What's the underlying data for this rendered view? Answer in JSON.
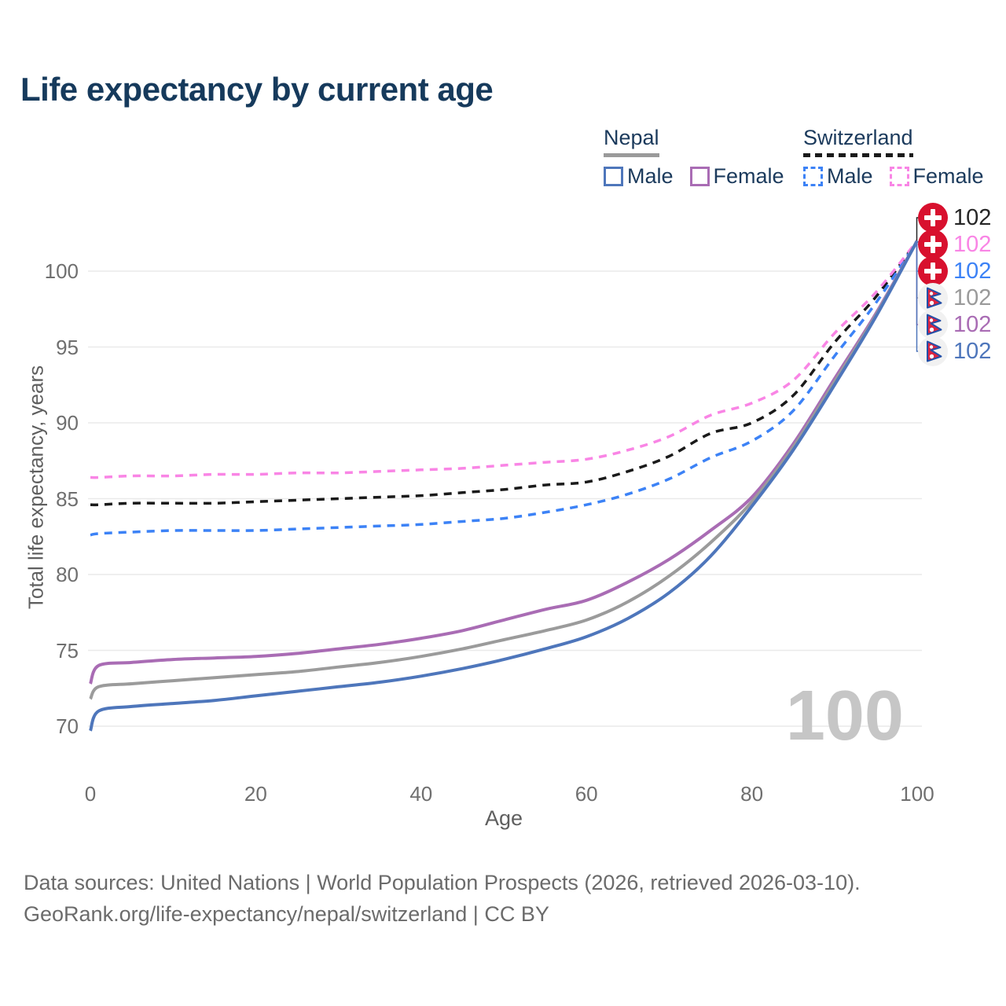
{
  "title": "Life expectancy by current age",
  "legend": {
    "groups": [
      {
        "name": "Nepal",
        "line_style": "solid",
        "underline_color": "#9a9a9a",
        "items": [
          {
            "label": "Male",
            "color": "#4e76bb"
          },
          {
            "label": "Female",
            "color": "#a96cb4"
          }
        ]
      },
      {
        "name": "Switzerland",
        "line_style": "dashed",
        "underline_color": "#1a1a1a",
        "items": [
          {
            "label": "Male",
            "color": "#3c82f6"
          },
          {
            "label": "Female",
            "color": "#f985e5"
          }
        ]
      }
    ]
  },
  "watermark": "100",
  "footer": {
    "line1": "Data sources: United Nations | World Population Prospects (2026, retrieved 2026-03-10).",
    "line2": "GeoRank.org/life-expectancy/nepal/switzerland | CC BY"
  },
  "chart_data": {
    "type": "line",
    "title": "Life expectancy by current age",
    "xlabel": "Age",
    "ylabel": "Total life expectancy, years",
    "xlim": [
      0,
      100
    ],
    "ylim": [
      69,
      103
    ],
    "xticks": [
      0,
      20,
      40,
      60,
      80,
      100
    ],
    "yticks": [
      70,
      75,
      80,
      85,
      90,
      95,
      100
    ],
    "grid": true,
    "legend_position": "top-right",
    "x": [
      0,
      1,
      5,
      10,
      15,
      20,
      25,
      30,
      35,
      40,
      45,
      50,
      55,
      60,
      65,
      70,
      75,
      80,
      85,
      90,
      95,
      100
    ],
    "series": [
      {
        "id": "switzerland-total",
        "name": "Switzerland",
        "country": "Switzerland",
        "sex": "total",
        "dashed": true,
        "color": "#1a1a1a",
        "values": [
          84.6,
          84.6,
          84.7,
          84.7,
          84.7,
          84.8,
          84.9,
          85.0,
          85.1,
          85.2,
          85.4,
          85.6,
          85.9,
          86.1,
          86.8,
          87.8,
          89.3,
          90.0,
          91.8,
          95.3,
          98.3,
          102
        ]
      },
      {
        "id": "switzerland-male",
        "name": "Switzerland Male",
        "country": "Switzerland",
        "sex": "male",
        "dashed": true,
        "color": "#3c82f6",
        "values": [
          82.6,
          82.7,
          82.8,
          82.9,
          82.9,
          82.9,
          83.0,
          83.1,
          83.2,
          83.3,
          83.5,
          83.7,
          84.1,
          84.6,
          85.3,
          86.3,
          87.7,
          88.8,
          90.8,
          94.4,
          97.9,
          102
        ]
      },
      {
        "id": "switzerland-female",
        "name": "Switzerland Female",
        "country": "Switzerland",
        "sex": "female",
        "dashed": true,
        "color": "#f985e5",
        "values": [
          86.4,
          86.4,
          86.5,
          86.5,
          86.6,
          86.6,
          86.7,
          86.7,
          86.8,
          86.9,
          87.0,
          87.2,
          87.4,
          87.6,
          88.2,
          89.1,
          90.5,
          91.3,
          92.8,
          95.9,
          98.6,
          102
        ]
      },
      {
        "id": "nepal-female",
        "name": "Nepal Female",
        "country": "Nepal",
        "sex": "female",
        "dashed": false,
        "color": "#a96cb4",
        "values": [
          72.8,
          74.0,
          74.2,
          74.4,
          74.5,
          74.6,
          74.8,
          75.1,
          75.4,
          75.8,
          76.3,
          77.0,
          77.7,
          78.3,
          79.5,
          81.0,
          82.9,
          85.1,
          88.6,
          92.9,
          97.2,
          102
        ]
      },
      {
        "id": "nepal-total",
        "name": "Nepal",
        "country": "Nepal",
        "sex": "total",
        "dashed": false,
        "color": "#9b9b9b",
        "values": [
          71.8,
          72.6,
          72.8,
          73.0,
          73.2,
          73.4,
          73.6,
          73.9,
          74.2,
          74.6,
          75.1,
          75.7,
          76.3,
          77.0,
          78.2,
          79.9,
          82.1,
          84.8,
          88.4,
          92.7,
          97.1,
          102
        ]
      },
      {
        "id": "nepal-male",
        "name": "Nepal Male",
        "country": "Nepal",
        "sex": "male",
        "dashed": false,
        "color": "#4e76bb",
        "values": [
          69.7,
          71.0,
          71.3,
          71.5,
          71.7,
          72.0,
          72.3,
          72.6,
          72.9,
          73.3,
          73.8,
          74.4,
          75.1,
          75.9,
          77.1,
          78.8,
          81.2,
          84.5,
          88.2,
          92.5,
          97.0,
          102
        ]
      }
    ],
    "end_labels": [
      {
        "text": "102",
        "flag": "switzerland",
        "color": "#262626",
        "series": "switzerland-total"
      },
      {
        "text": "102",
        "flag": "switzerland",
        "color": "#f985e5",
        "series": "switzerland-female"
      },
      {
        "text": "102",
        "flag": "switzerland",
        "color": "#3c82f6",
        "series": "switzerland-male"
      },
      {
        "text": "102",
        "flag": "nepal",
        "color": "#9a9a9a",
        "series": "nepal-total"
      },
      {
        "text": "102",
        "flag": "nepal",
        "color": "#a96cb4",
        "series": "nepal-female"
      },
      {
        "text": "102",
        "flag": "nepal",
        "color": "#4e76bb",
        "series": "nepal-male"
      }
    ],
    "flag_colors": {
      "swiss_red": "#d8102e",
      "nepal_crimson": "#dc2340",
      "nepal_blue": "#2450a8"
    }
  }
}
